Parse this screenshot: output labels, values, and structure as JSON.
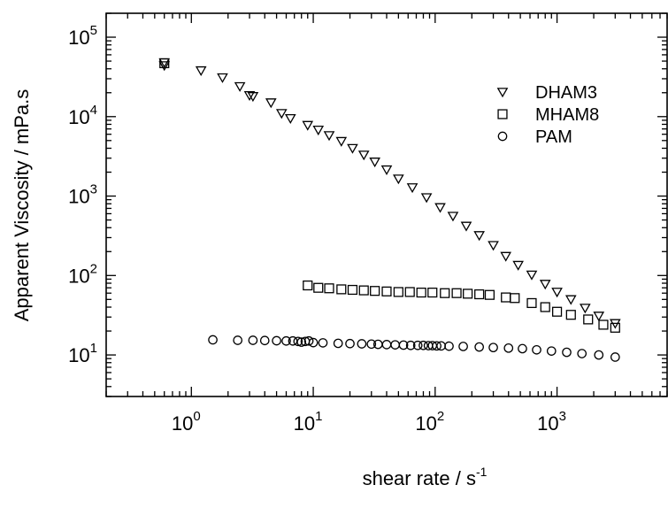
{
  "chart_data": {
    "type": "scatter",
    "title": "",
    "xlabel": "shear rate / s",
    "xlabel_sup": "-1",
    "ylabel": "Apparent Viscosity / mPa.s",
    "xscale": "log",
    "yscale": "log",
    "xlim": [
      0.2,
      8000
    ],
    "ylim": [
      3,
      200000
    ],
    "x_ticks": [
      {
        "base": "10",
        "exp": "0",
        "value": 1
      },
      {
        "base": "10",
        "exp": "1",
        "value": 10
      },
      {
        "base": "10",
        "exp": "2",
        "value": 100
      },
      {
        "base": "10",
        "exp": "3",
        "value": 1000
      }
    ],
    "y_ticks": [
      {
        "base": "10",
        "exp": "1",
        "value": 10
      },
      {
        "base": "10",
        "exp": "2",
        "value": 100
      },
      {
        "base": "10",
        "exp": "3",
        "value": 1000
      },
      {
        "base": "10",
        "exp": "4",
        "value": 10000
      },
      {
        "base": "10",
        "exp": "5",
        "value": 100000
      }
    ],
    "grid": false,
    "legend_position": "top-right",
    "series": [
      {
        "name": "DHAM3",
        "marker": "triangle-down",
        "points": [
          [
            0.6,
            44000
          ],
          [
            0.6,
            48000
          ],
          [
            1.2,
            38000
          ],
          [
            1.8,
            31000
          ],
          [
            2.5,
            24000
          ],
          [
            3.0,
            18500
          ],
          [
            3.2,
            18000
          ],
          [
            4.5,
            15000
          ],
          [
            5.5,
            11000
          ],
          [
            6.5,
            9500
          ],
          [
            9.0,
            7800
          ],
          [
            11.0,
            6800
          ],
          [
            13.5,
            5800
          ],
          [
            17.0,
            4900
          ],
          [
            21.0,
            4000
          ],
          [
            26.0,
            3300
          ],
          [
            32.0,
            2700
          ],
          [
            40.0,
            2150
          ],
          [
            50.0,
            1650
          ],
          [
            65.0,
            1280
          ],
          [
            85.0,
            960
          ],
          [
            110.0,
            720
          ],
          [
            140.0,
            560
          ],
          [
            180.0,
            420
          ],
          [
            230.0,
            320
          ],
          [
            300.0,
            240
          ],
          [
            380.0,
            175
          ],
          [
            480.0,
            135
          ],
          [
            620.0,
            102
          ],
          [
            800.0,
            78
          ],
          [
            1000.0,
            62
          ],
          [
            1300.0,
            50
          ],
          [
            1700.0,
            39
          ],
          [
            2200.0,
            31
          ],
          [
            3000.0,
            25
          ]
        ]
      },
      {
        "name": "MHAM8",
        "marker": "square",
        "points": [
          [
            0.6,
            47000
          ],
          [
            9.0,
            75
          ],
          [
            11.0,
            70
          ],
          [
            13.5,
            69
          ],
          [
            17.0,
            67
          ],
          [
            21.0,
            66
          ],
          [
            26.0,
            65
          ],
          [
            32.0,
            64
          ],
          [
            40.0,
            63
          ],
          [
            50.0,
            62
          ],
          [
            62.0,
            62
          ],
          [
            77.0,
            61
          ],
          [
            95.0,
            61
          ],
          [
            120.0,
            60
          ],
          [
            150.0,
            60
          ],
          [
            185.0,
            59
          ],
          [
            230.0,
            58
          ],
          [
            280.0,
            57
          ],
          [
            380.0,
            53
          ],
          [
            450.0,
            52
          ],
          [
            620.0,
            45
          ],
          [
            800.0,
            40
          ],
          [
            1000.0,
            35
          ],
          [
            1300.0,
            32
          ],
          [
            1800.0,
            28
          ],
          [
            2400.0,
            24
          ],
          [
            3000.0,
            22
          ]
        ]
      },
      {
        "name": "PAM",
        "marker": "circle",
        "points": [
          [
            1.5,
            15.5
          ],
          [
            2.4,
            15.3
          ],
          [
            3.2,
            15.3
          ],
          [
            4.0,
            15.2
          ],
          [
            5.0,
            15.1
          ],
          [
            6.0,
            15.0
          ],
          [
            6.8,
            15.0
          ],
          [
            7.5,
            14.8
          ],
          [
            8.0,
            14.5
          ],
          [
            8.6,
            14.8
          ],
          [
            9.2,
            15.0
          ],
          [
            10.0,
            14.3
          ],
          [
            12.0,
            14.2
          ],
          [
            16.0,
            14.0
          ],
          [
            20.0,
            13.9
          ],
          [
            25.0,
            13.8
          ],
          [
            30.0,
            13.7
          ],
          [
            34.0,
            13.6
          ],
          [
            40.0,
            13.5
          ],
          [
            47.0,
            13.4
          ],
          [
            55.0,
            13.3
          ],
          [
            63.0,
            13.2
          ],
          [
            72.0,
            13.2
          ],
          [
            80.0,
            13.2
          ],
          [
            88.0,
            13.1
          ],
          [
            95.0,
            13.1
          ],
          [
            103.0,
            13.0
          ],
          [
            112.0,
            13.0
          ],
          [
            130.0,
            12.9
          ],
          [
            170.0,
            12.8
          ],
          [
            230.0,
            12.6
          ],
          [
            300.0,
            12.4
          ],
          [
            400.0,
            12.2
          ],
          [
            520.0,
            12.0
          ],
          [
            680.0,
            11.6
          ],
          [
            900.0,
            11.2
          ],
          [
            1200.0,
            10.8
          ],
          [
            1600.0,
            10.4
          ],
          [
            2200.0,
            10.0
          ],
          [
            3000.0,
            9.4
          ]
        ]
      }
    ]
  }
}
